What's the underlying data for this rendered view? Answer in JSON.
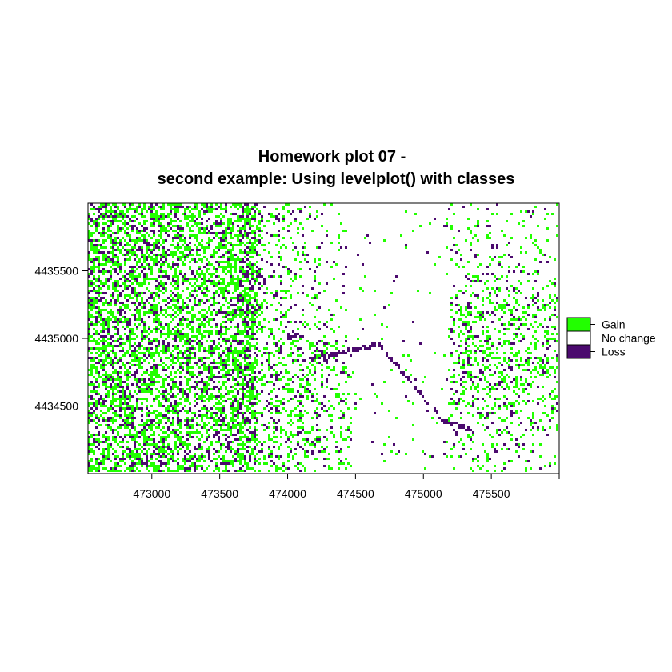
{
  "chart_data": {
    "type": "heatmap",
    "title_lines": [
      "Homework plot 07 -",
      "second example: Using levelplot() with classes"
    ],
    "xlabel": "",
    "ylabel": "",
    "xlim": [
      472530,
      476000
    ],
    "ylim": [
      4434000,
      4436000
    ],
    "x_ticks": [
      473000,
      473500,
      474000,
      474500,
      475000,
      475500
    ],
    "y_ticks": [
      4434500,
      4435000,
      4435500
    ],
    "grid": false,
    "legend_position": "right",
    "classes": [
      {
        "name": "Gain",
        "color": "#22ff00"
      },
      {
        "name": "No change",
        "color": "#ffffff"
      },
      {
        "name": "Loss",
        "color": "#4b0a6e"
      }
    ]
  }
}
